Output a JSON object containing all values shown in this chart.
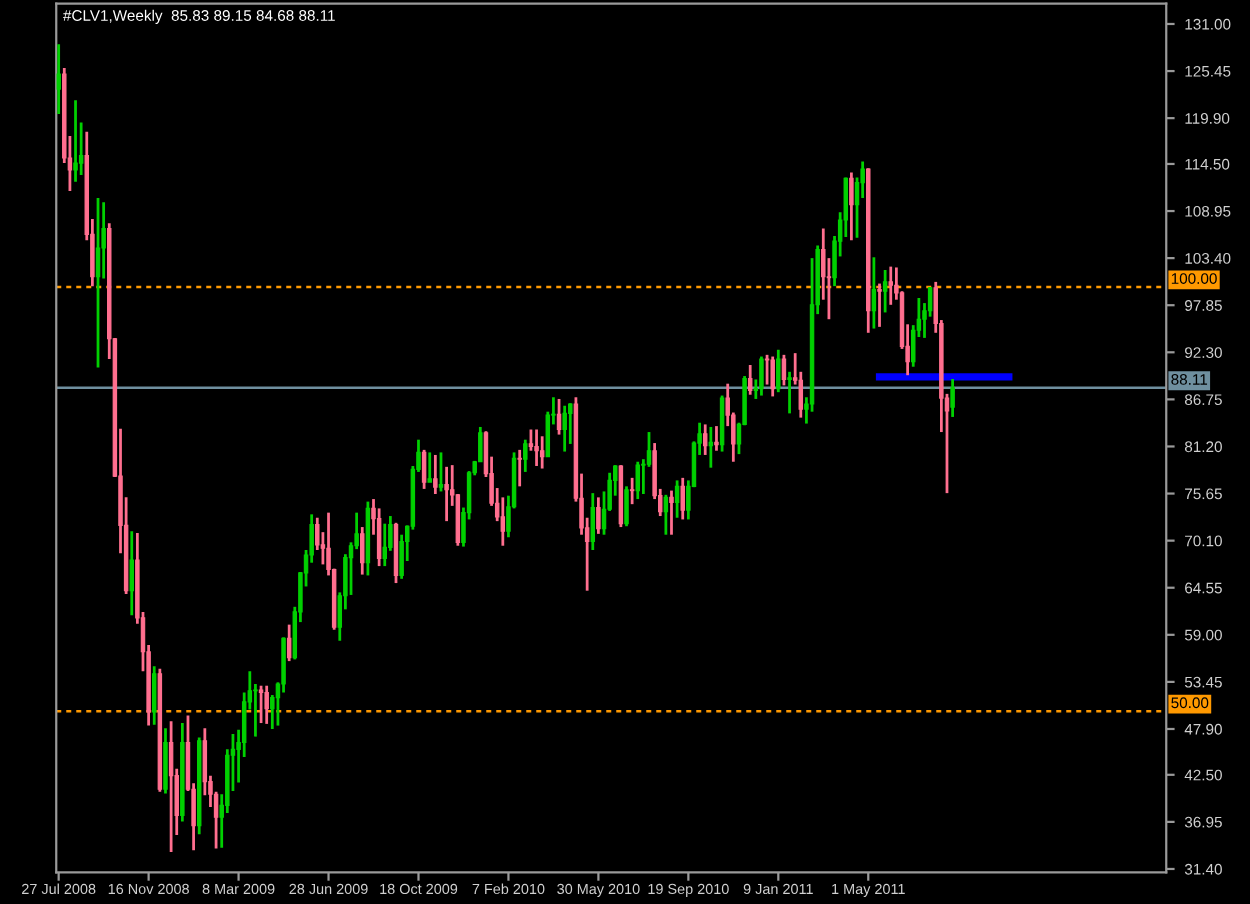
{
  "chart_data": {
    "type": "candlestick",
    "title": "#CLV1,Weekly  85.83 89.15 84.68 88.11",
    "x": [
      "2008-07-27",
      "2008-08-03",
      "2008-08-10",
      "2008-08-17",
      "2008-08-24",
      "2008-08-31",
      "2008-09-07",
      "2008-09-14",
      "2008-09-21",
      "2008-09-28",
      "2008-10-05",
      "2008-10-12",
      "2008-10-19",
      "2008-10-26",
      "2008-11-02",
      "2008-11-09",
      "2008-11-16",
      "2008-11-23",
      "2008-11-30",
      "2008-12-07",
      "2008-12-14",
      "2008-12-21",
      "2008-12-28",
      "2009-01-04",
      "2009-01-11",
      "2009-01-18",
      "2009-01-25",
      "2009-02-01",
      "2009-02-08",
      "2009-02-15",
      "2009-02-22",
      "2009-03-01",
      "2009-03-08",
      "2009-03-15",
      "2009-03-22",
      "2009-03-29",
      "2009-04-05",
      "2009-04-12",
      "2009-04-19",
      "2009-04-26",
      "2009-05-03",
      "2009-05-10",
      "2009-05-17",
      "2009-05-24",
      "2009-05-31",
      "2009-06-07",
      "2009-06-14",
      "2009-06-21",
      "2009-06-28",
      "2009-07-05",
      "2009-07-12",
      "2009-07-19",
      "2009-07-26",
      "2009-08-02",
      "2009-08-09",
      "2009-08-16",
      "2009-08-23",
      "2009-08-30",
      "2009-09-06",
      "2009-09-13",
      "2009-09-20",
      "2009-09-27",
      "2009-10-04",
      "2009-10-11",
      "2009-10-18",
      "2009-10-25",
      "2009-11-01",
      "2009-11-08",
      "2009-11-15",
      "2009-11-22",
      "2009-11-29",
      "2009-12-06",
      "2009-12-13",
      "2009-12-20",
      "2009-12-27",
      "2010-01-03",
      "2010-01-10",
      "2010-01-17",
      "2010-01-24",
      "2010-01-31",
      "2010-02-07",
      "2010-02-14",
      "2010-02-21",
      "2010-02-28",
      "2010-03-07",
      "2010-03-14",
      "2010-03-21",
      "2010-03-28",
      "2010-04-04",
      "2010-04-11",
      "2010-04-18",
      "2010-04-25",
      "2010-05-02",
      "2010-05-09",
      "2010-05-16",
      "2010-05-23",
      "2010-05-30",
      "2010-06-06",
      "2010-06-13",
      "2010-06-20",
      "2010-06-27",
      "2010-07-04",
      "2010-07-11",
      "2010-07-18",
      "2010-07-25",
      "2010-08-01",
      "2010-08-08",
      "2010-08-15",
      "2010-08-22",
      "2010-08-29",
      "2010-09-05",
      "2010-09-12",
      "2010-09-19",
      "2010-09-26",
      "2010-10-03",
      "2010-10-10",
      "2010-10-17",
      "2010-10-24",
      "2010-10-31",
      "2010-11-07",
      "2010-11-14",
      "2010-11-21",
      "2010-11-28",
      "2010-12-05",
      "2010-12-12",
      "2010-12-19",
      "2010-12-26",
      "2011-01-02",
      "2011-01-09",
      "2011-01-16",
      "2011-01-23",
      "2011-01-30",
      "2011-02-06",
      "2011-02-13",
      "2011-02-20",
      "2011-02-27",
      "2011-03-06",
      "2011-03-13",
      "2011-03-20",
      "2011-03-27",
      "2011-04-03",
      "2011-04-10",
      "2011-04-17",
      "2011-04-24",
      "2011-05-01",
      "2011-05-08",
      "2011-05-15",
      "2011-05-22",
      "2011-05-29",
      "2011-06-05",
      "2011-06-12",
      "2011-06-19",
      "2011-06-26",
      "2011-07-03",
      "2011-07-10",
      "2011-07-17",
      "2011-07-24",
      "2011-07-31",
      "2011-08-07",
      "2011-08-14"
    ],
    "ohlc": [
      [
        123.3,
        128.6,
        120.4,
        125.1
      ],
      [
        125.1,
        125.8,
        114.6,
        115.2
      ],
      [
        115.2,
        117.8,
        111.3,
        113.8
      ],
      [
        113.8,
        122.0,
        112.4,
        114.6
      ],
      [
        114.6,
        119.4,
        113.2,
        115.5
      ],
      [
        115.5,
        118.3,
        105.5,
        106.2
      ],
      [
        106.2,
        108.0,
        100.1,
        101.2
      ],
      [
        101.2,
        110.5,
        90.5,
        104.6
      ],
      [
        104.6,
        110.0,
        101.0,
        106.9
      ],
      [
        106.9,
        107.5,
        91.5,
        93.9
      ],
      [
        93.9,
        94.0,
        77.6,
        77.7
      ],
      [
        77.7,
        83.3,
        68.6,
        71.9
      ],
      [
        71.9,
        75.2,
        63.8,
        64.2
      ],
      [
        64.2,
        71.2,
        61.3,
        67.8
      ],
      [
        67.8,
        71.0,
        60.3,
        61.0
      ],
      [
        61.0,
        61.7,
        54.7,
        57.0
      ],
      [
        57.0,
        57.8,
        48.3,
        49.9
      ],
      [
        49.9,
        55.3,
        48.4,
        54.4
      ],
      [
        54.4,
        55.0,
        40.5,
        40.8
      ],
      [
        40.8,
        48.0,
        40.3,
        46.3
      ],
      [
        46.3,
        48.8,
        33.4,
        42.4
      ],
      [
        42.4,
        43.2,
        35.4,
        37.7
      ],
      [
        37.7,
        48.6,
        37.0,
        46.3
      ],
      [
        46.3,
        49.5,
        40.6,
        40.8
      ],
      [
        40.8,
        41.5,
        33.6,
        36.5
      ],
      [
        36.5,
        46.9,
        35.5,
        46.5
      ],
      [
        46.5,
        48.0,
        40.1,
        41.7
      ],
      [
        41.7,
        42.4,
        38.7,
        40.2
      ],
      [
        40.2,
        40.5,
        33.8,
        37.5
      ],
      [
        37.5,
        40.2,
        33.9,
        38.9
      ],
      [
        38.9,
        45.5,
        38.0,
        44.8
      ],
      [
        44.8,
        47.3,
        40.6,
        45.5
      ],
      [
        45.5,
        47.8,
        41.6,
        46.3
      ],
      [
        46.3,
        52.2,
        44.6,
        51.1
      ],
      [
        51.1,
        54.7,
        50.2,
        52.4
      ],
      [
        52.4,
        53.2,
        47.0,
        52.5
      ],
      [
        52.5,
        53.0,
        48.6,
        52.2
      ],
      [
        52.2,
        53.0,
        48.5,
        50.3
      ],
      [
        50.3,
        51.9,
        47.9,
        51.6
      ],
      [
        51.6,
        53.4,
        48.3,
        53.2
      ],
      [
        53.2,
        58.7,
        52.2,
        58.6
      ],
      [
        58.6,
        60.2,
        55.9,
        56.3
      ],
      [
        56.3,
        62.3,
        56.1,
        61.7
      ],
      [
        61.7,
        66.4,
        60.5,
        66.3
      ],
      [
        66.3,
        69.0,
        64.7,
        68.4
      ],
      [
        68.4,
        73.2,
        67.5,
        72.0
      ],
      [
        72.0,
        72.8,
        69.0,
        69.6
      ],
      [
        69.6,
        71.1,
        67.3,
        69.2
      ],
      [
        69.2,
        73.4,
        66.0,
        66.7
      ],
      [
        66.7,
        66.8,
        59.6,
        59.9
      ],
      [
        59.9,
        64.0,
        58.3,
        63.6
      ],
      [
        63.6,
        68.5,
        62.0,
        68.1
      ],
      [
        68.1,
        69.9,
        63.7,
        69.5
      ],
      [
        69.5,
        73.4,
        69.1,
        70.9
      ],
      [
        70.9,
        71.7,
        66.1,
        67.5
      ],
      [
        67.5,
        74.7,
        66.0,
        73.9
      ],
      [
        73.9,
        75.0,
        70.8,
        72.7
      ],
      [
        72.7,
        73.9,
        67.1,
        68.0
      ],
      [
        68.0,
        72.1,
        67.1,
        69.3
      ],
      [
        69.3,
        73.0,
        68.9,
        72.0
      ],
      [
        72.0,
        72.2,
        65.1,
        66.0
      ],
      [
        66.0,
        70.8,
        65.6,
        70.0
      ],
      [
        70.0,
        71.9,
        67.7,
        71.8
      ],
      [
        71.8,
        78.9,
        71.4,
        78.5
      ],
      [
        78.5,
        82.0,
        78.2,
        80.5
      ],
      [
        80.5,
        80.8,
        76.2,
        77.0
      ],
      [
        77.0,
        80.5,
        77.0,
        77.4
      ],
      [
        77.4,
        80.2,
        75.6,
        76.4
      ],
      [
        76.4,
        80.5,
        75.9,
        76.7
      ],
      [
        76.7,
        78.8,
        72.4,
        76.1
      ],
      [
        76.1,
        79.0,
        74.2,
        75.5
      ],
      [
        75.5,
        75.6,
        69.5,
        69.9
      ],
      [
        69.9,
        74.0,
        69.4,
        73.4
      ],
      [
        73.4,
        78.3,
        72.6,
        78.1
      ],
      [
        78.1,
        79.5,
        77.8,
        79.4
      ],
      [
        79.4,
        83.5,
        79.4,
        82.8
      ],
      [
        82.8,
        83.0,
        77.6,
        78.0
      ],
      [
        78.0,
        80.0,
        74.2,
        74.5
      ],
      [
        74.5,
        76.3,
        72.4,
        72.9
      ],
      [
        72.9,
        75.2,
        69.5,
        71.2
      ],
      [
        71.2,
        75.4,
        70.5,
        74.1
      ],
      [
        74.1,
        80.5,
        73.9,
        79.8
      ],
      [
        79.8,
        80.8,
        76.5,
        79.7
      ],
      [
        79.7,
        82.0,
        78.2,
        81.5
      ],
      [
        81.5,
        83.2,
        80.7,
        81.2
      ],
      [
        81.2,
        83.2,
        78.9,
        80.7
      ],
      [
        80.7,
        82.4,
        78.6,
        80.0
      ],
      [
        80.0,
        85.3,
        80.0,
        84.9
      ],
      [
        84.9,
        87.0,
        83.8,
        85.0
      ],
      [
        85.0,
        86.8,
        82.6,
        83.2
      ],
      [
        83.2,
        86.0,
        80.6,
        85.1
      ],
      [
        85.1,
        86.3,
        81.5,
        86.2
      ],
      [
        86.2,
        87.0,
        74.7,
        75.1
      ],
      [
        75.1,
        78.0,
        70.8,
        71.6
      ],
      [
        71.6,
        72.8,
        64.2,
        70.0
      ],
      [
        70.0,
        75.7,
        69.0,
        74.0
      ],
      [
        74.0,
        75.2,
        70.9,
        71.5
      ],
      [
        71.5,
        75.9,
        70.8,
        73.8
      ],
      [
        73.8,
        78.1,
        73.6,
        77.2
      ],
      [
        77.2,
        79.0,
        75.4,
        78.9
      ],
      [
        78.9,
        79.0,
        71.7,
        72.1
      ],
      [
        72.1,
        76.5,
        71.8,
        76.1
      ],
      [
        76.1,
        77.5,
        74.4,
        76.0
      ],
      [
        76.0,
        79.4,
        75.0,
        79.0
      ],
      [
        79.0,
        79.7,
        75.6,
        79.1
      ],
      [
        79.1,
        82.9,
        78.8,
        80.7
      ],
      [
        80.7,
        81.6,
        75.0,
        75.4
      ],
      [
        75.4,
        76.2,
        73.0,
        73.5
      ],
      [
        73.5,
        75.5,
        70.8,
        75.2
      ],
      [
        75.2,
        76.0,
        70.8,
        74.6
      ],
      [
        74.6,
        77.2,
        72.8,
        76.5
      ],
      [
        76.5,
        77.5,
        72.6,
        73.7
      ],
      [
        73.7,
        77.2,
        72.6,
        76.5
      ],
      [
        76.5,
        81.8,
        76.4,
        81.6
      ],
      [
        81.6,
        84.0,
        80.2,
        82.7
      ],
      [
        82.7,
        83.8,
        80.2,
        81.3
      ],
      [
        81.3,
        83.5,
        78.7,
        81.7
      ],
      [
        81.7,
        83.6,
        80.7,
        81.4
      ],
      [
        81.4,
        87.2,
        80.6,
        86.9
      ],
      [
        86.9,
        88.6,
        83.6,
        84.9
      ],
      [
        84.9,
        85.2,
        79.4,
        81.5
      ],
      [
        81.5,
        84.0,
        80.3,
        83.8
      ],
      [
        83.8,
        89.5,
        83.7,
        89.2
      ],
      [
        89.2,
        90.8,
        87.3,
        87.8
      ],
      [
        87.8,
        89.1,
        86.8,
        88.0
      ],
      [
        88.0,
        91.8,
        87.2,
        91.5
      ],
      [
        91.5,
        92.0,
        88.5,
        91.4
      ],
      [
        91.4,
        91.8,
        87.1,
        88.0
      ],
      [
        88.0,
        92.6,
        87.6,
        91.5
      ],
      [
        91.5,
        92.0,
        88.4,
        89.1
      ],
      [
        89.1,
        90.0,
        85.1,
        89.3
      ],
      [
        89.3,
        92.2,
        88.5,
        89.0
      ],
      [
        89.0,
        90.0,
        84.6,
        85.6
      ],
      [
        85.6,
        87.0,
        83.9,
        86.2
      ],
      [
        86.2,
        103.4,
        85.3,
        97.9
      ],
      [
        97.9,
        104.9,
        96.8,
        104.4
      ],
      [
        104.4,
        106.9,
        98.5,
        101.2
      ],
      [
        101.2,
        103.4,
        96.2,
        101.1
      ],
      [
        101.1,
        106.0,
        100.1,
        105.4
      ],
      [
        105.4,
        108.8,
        103.6,
        107.9
      ],
      [
        107.9,
        112.9,
        105.9,
        112.8
      ],
      [
        112.8,
        113.5,
        105.5,
        109.7
      ],
      [
        109.7,
        112.9,
        105.8,
        112.3
      ],
      [
        112.3,
        114.8,
        110.5,
        113.9
      ],
      [
        113.9,
        114.0,
        94.6,
        97.2
      ],
      [
        97.2,
        103.5,
        95.1,
        99.7
      ],
      [
        99.7,
        100.4,
        95.3,
        99.5
      ],
      [
        99.5,
        102.0,
        97.0,
        100.6
      ],
      [
        100.6,
        102.4,
        97.9,
        100.2
      ],
      [
        100.2,
        102.3,
        98.5,
        99.3
      ],
      [
        99.3,
        99.5,
        92.7,
        93.0
      ],
      [
        93.0,
        95.6,
        89.6,
        91.2
      ],
      [
        91.2,
        95.5,
        90.6,
        94.9
      ],
      [
        94.9,
        98.7,
        94.1,
        96.2
      ],
      [
        96.2,
        98.1,
        94.0,
        97.2
      ],
      [
        97.2,
        100.0,
        96.5,
        99.9
      ],
      [
        99.9,
        100.6,
        94.6,
        95.7
      ],
      [
        95.7,
        96.1,
        82.9,
        86.9
      ],
      [
        86.9,
        87.4,
        75.7,
        85.4
      ],
      [
        85.83,
        89.15,
        84.68,
        88.11
      ]
    ],
    "colors": [
      "#00d000",
      "#ff6f8f",
      "#ff6f8f",
      "#00d000",
      "#00d000",
      "#ff6f8f",
      "#ff6f8f",
      "#00d000",
      "#00d000",
      "#ff6f8f",
      "#ff6f8f",
      "#ff6f8f",
      "#ff6f8f",
      "#00d000",
      "#ff6f8f",
      "#ff6f8f",
      "#ff6f8f",
      "#00d000",
      "#ff6f8f",
      "#00d000",
      "#ff6f8f",
      "#ff6f8f",
      "#00d000",
      "#ff6f8f",
      "#ff6f8f",
      "#00d000",
      "#ff6f8f",
      "#ff6f8f",
      "#ff6f8f",
      "#00d000",
      "#00d000",
      "#00d000",
      "#00d000",
      "#00d000",
      "#00d000",
      "#00d000",
      "#ff6f8f",
      "#ff6f8f",
      "#00d000",
      "#00d000",
      "#00d000",
      "#ff6f8f",
      "#00d000",
      "#00d000",
      "#00d000",
      "#00d000",
      "#ff6f8f",
      "#ff6f8f",
      "#ff6f8f",
      "#ff6f8f",
      "#00d000",
      "#00d000",
      "#00d000",
      "#00d000",
      "#ff6f8f",
      "#00d000",
      "#ff6f8f",
      "#ff6f8f",
      "#00d000",
      "#00d000",
      "#ff6f8f",
      "#00d000",
      "#00d000",
      "#00d000",
      "#00d000",
      "#ff6f8f",
      "#00d000",
      "#ff6f8f",
      "#00d000",
      "#ff6f8f",
      "#ff6f8f",
      "#ff6f8f",
      "#00d000",
      "#00d000",
      "#00d000",
      "#00d000",
      "#ff6f8f",
      "#ff6f8f",
      "#ff6f8f",
      "#ff6f8f",
      "#00d000",
      "#00d000",
      "#ff6f8f",
      "#00d000",
      "#ff6f8f",
      "#ff6f8f",
      "#ff6f8f",
      "#00d000",
      "#00d000",
      "#ff6f8f",
      "#00d000",
      "#00d000",
      "#ff6f8f",
      "#ff6f8f",
      "#ff6f8f",
      "#00d000",
      "#ff6f8f",
      "#00d000",
      "#00d000",
      "#00d000",
      "#ff6f8f",
      "#00d000",
      "#ff6f8f",
      "#00d000",
      "#00d000",
      "#00d000",
      "#ff6f8f",
      "#ff6f8f",
      "#00d000",
      "#ff6f8f",
      "#00d000",
      "#ff6f8f",
      "#00d000",
      "#00d000",
      "#00d000",
      "#ff6f8f",
      "#00d000",
      "#ff6f8f",
      "#00d000",
      "#ff6f8f",
      "#ff6f8f",
      "#00d000",
      "#00d000",
      "#ff6f8f",
      "#00d000",
      "#00d000",
      "#ff6f8f",
      "#ff6f8f",
      "#00d000",
      "#ff6f8f",
      "#00d000",
      "#ff6f8f",
      "#ff6f8f",
      "#00d000",
      "#00d000",
      "#00d000",
      "#ff6f8f",
      "#ff6f8f",
      "#00d000",
      "#00d000",
      "#00d000",
      "#ff6f8f",
      "#00d000",
      "#00d000",
      "#ff6f8f",
      "#00d000",
      "#ff6f8f",
      "#00d000",
      "#ff6f8f",
      "#ff6f8f",
      "#ff6f8f",
      "#ff6f8f",
      "#00d000",
      "#00d000",
      "#00d000",
      "#00d000",
      "#ff6f8f",
      "#ff6f8f",
      "#ff6f8f",
      "#00d000"
    ],
    "series": [
      {
        "type": "line",
        "x": [
          "2011-05-15",
          "2011-10-23"
        ],
        "values": [
          89.4,
          89.4
        ],
        "color": "#0000ff"
      }
    ],
    "ref_lines": [
      {
        "axis": "y",
        "value": 100,
        "label": "100.00",
        "color": "#ff9900",
        "line_style": "dotted"
      },
      {
        "axis": "y",
        "value": 50,
        "label": "50.00",
        "color": "#ff9900",
        "line_style": "dotted"
      },
      {
        "axis": "y",
        "value": 88.11,
        "label": "88.11",
        "color": "#6f8f9f",
        "line_style": "solid"
      }
    ],
    "xlim": [
      "2008-07-24",
      "2012-05-06"
    ],
    "xticks": [
      {
        "value": "2008-07-27",
        "label": "27 Jul 2008"
      },
      {
        "value": "2008-11-16",
        "label": "16 Nov 2008"
      },
      {
        "value": "2009-03-08",
        "label": "8 Mar 2009"
      },
      {
        "value": "2009-06-28",
        "label": "28 Jun 2009"
      },
      {
        "value": "2009-10-18",
        "label": "18 Oct 2009"
      },
      {
        "value": "2010-02-07",
        "label": "7 Feb 2010"
      },
      {
        "value": "2010-05-30",
        "label": "30 May 2010"
      },
      {
        "value": "2010-09-19",
        "label": "19 Sep 2010"
      },
      {
        "value": "2011-01-09",
        "label": "9 Jan 2011"
      },
      {
        "value": "2011-05-01",
        "label": "1 May 2011"
      }
    ],
    "ylim": [
      31.0,
      133.4
    ],
    "yticks": [
      {
        "value": 131,
        "label": "131.00"
      },
      {
        "value": 125.45,
        "label": "125.45"
      },
      {
        "value": 119.9,
        "label": "119.90"
      },
      {
        "value": 114.5,
        "label": "114.50"
      },
      {
        "value": 108.95,
        "label": "108.95"
      },
      {
        "value": 103.4,
        "label": "103.40"
      },
      {
        "value": 97.85,
        "label": "97.85"
      },
      {
        "value": 92.3,
        "label": "92.30"
      },
      {
        "value": 86.75,
        "label": "86.75"
      },
      {
        "value": 81.2,
        "label": "81.20"
      },
      {
        "value": 75.65,
        "label": "75.65"
      },
      {
        "value": 70.1,
        "label": "70.10"
      },
      {
        "value": 64.55,
        "label": "64.55"
      },
      {
        "value": 59,
        "label": "59.00"
      },
      {
        "value": 53.45,
        "label": "53.45"
      },
      {
        "value": 47.9,
        "label": "47.90"
      },
      {
        "value": 42.5,
        "label": "42.50"
      },
      {
        "value": 36.95,
        "label": "36.95"
      },
      {
        "value": 31.4,
        "label": "31.40"
      }
    ]
  }
}
